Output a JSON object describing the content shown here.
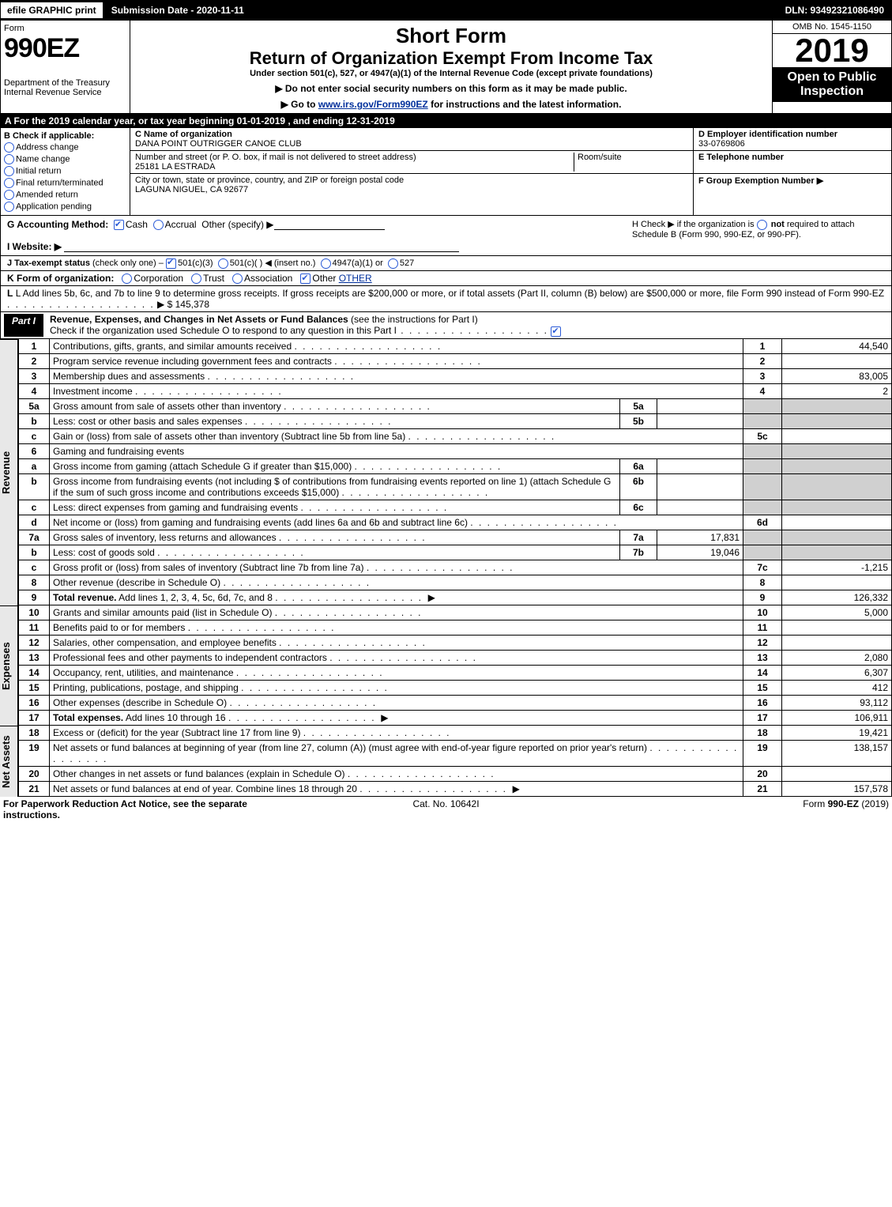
{
  "topbar": {
    "efile": "efile GRAPHIC print",
    "subdate": "Submission Date - 2020-11-11",
    "dln": "DLN: 93492321086490"
  },
  "header": {
    "form": "Form",
    "ez": "990EZ",
    "dept": "Department of the Treasury",
    "irs": "Internal Revenue Service",
    "short": "Short Form",
    "ret": "Return of Organization Exempt From Income Tax",
    "under": "Under section 501(c), 527, or 4947(a)(1) of the Internal Revenue Code (except private foundations)",
    "ptr1": "▶ Do not enter social security numbers on this form as it may be made public.",
    "ptr2_a": "▶ Go to ",
    "ptr2_link": "www.irs.gov/Form990EZ",
    "ptr2_b": " for instructions and the latest information.",
    "omb": "OMB No. 1545-1150",
    "year": "2019",
    "oti": "Open to Public Inspection"
  },
  "period": "A  For the 2019 calendar year, or tax year beginning 01-01-2019 , and ending 12-31-2019",
  "B": {
    "hdr": "B  Check if applicable:",
    "items": [
      "Address change",
      "Name change",
      "Initial return",
      "Final return/terminated",
      "Amended return",
      "Application pending"
    ]
  },
  "C": {
    "nameLbl": "C Name of organization",
    "name": "DANA POINT OUTRIGGER CANOE CLUB",
    "addrLbl": "Number and street (or P. O. box, if mail is not delivered to street address)",
    "room": "Room/suite",
    "addr": "25181 LA ESTRADA",
    "cityLbl": "City or town, state or province, country, and ZIP or foreign postal code",
    "city": "LAGUNA NIGUEL, CA  92677"
  },
  "D": {
    "lbl": "D Employer identification number",
    "val": "33-0769806"
  },
  "E": {
    "lbl": "E Telephone number"
  },
  "F": {
    "lbl": "F Group Exemption Number  ▶"
  },
  "G": {
    "lbl": "G Accounting Method:",
    "cash": "Cash",
    "accr": "Accrual",
    "other": "Other (specify) ▶"
  },
  "H": {
    "txt": "H   Check ▶         if the organization is ",
    "not": "not",
    "rest": "required to attach Schedule B (Form 990, 990-EZ, or 990-PF)."
  },
  "I": {
    "lbl": "I Website: ▶"
  },
  "J": {
    "lbl": "J Tax-exempt status",
    "rest": " (check only one) – ",
    "o1": "501(c)(3)",
    "o2": "501(c)(  ) ◀ (insert no.)",
    "o3": "4947(a)(1) or",
    "o4": "527"
  },
  "K": {
    "lbl": "K Form of organization:",
    "o1": "Corporation",
    "o2": "Trust",
    "o3": "Association",
    "o4": "Other",
    "other": "OTHER"
  },
  "L": {
    "txt": "L Add lines 5b, 6c, and 7b to line 9 to determine gross receipts. If gross receipts are $200,000 or more, or if total assets (Part II, column (B) below) are $500,000 or more, file Form 990 instead of Form 990-EZ",
    "amt": "▶ $ 145,378"
  },
  "part1": {
    "label": "Part I",
    "title": "Revenue, Expenses, and Changes in Net Assets or Fund Balances",
    "note": "(see the instructions for Part I)",
    "check": "Check if the organization used Schedule O to respond to any question in this Part I"
  },
  "sections": {
    "rev": "Revenue",
    "exp": "Expenses",
    "na": "Net Assets"
  },
  "rows": [
    {
      "n": "1",
      "d": "Contributions, gifts, grants, and similar amounts received",
      "rc": "1",
      "v": "44,540"
    },
    {
      "n": "2",
      "d": "Program service revenue including government fees and contracts",
      "rc": "2",
      "v": ""
    },
    {
      "n": "3",
      "d": "Membership dues and assessments",
      "rc": "3",
      "v": "83,005"
    },
    {
      "n": "4",
      "d": "Investment income",
      "rc": "4",
      "v": "2"
    },
    {
      "n": "5a",
      "d": "Gross amount from sale of assets other than inventory",
      "mc": "5a",
      "mv": "",
      "shade": true
    },
    {
      "n": "b",
      "d": "Less: cost or other basis and sales expenses",
      "mc": "5b",
      "mv": "",
      "shade": true
    },
    {
      "n": "c",
      "d": "Gain or (loss) from sale of assets other than inventory (Subtract line 5b from line 5a)",
      "rc": "5c",
      "v": ""
    },
    {
      "n": "6",
      "d": "Gaming and fundraising events",
      "shade": true,
      "noval": true
    },
    {
      "n": "a",
      "d": "Gross income from gaming (attach Schedule G if greater than $15,000)",
      "mc": "6a",
      "mv": "",
      "shade": true
    },
    {
      "n": "b",
      "d": "Gross income from fundraising events (not including $                          of contributions from fundraising events reported on line 1) (attach Schedule G if the sum of such gross income and contributions exceeds $15,000)",
      "mc": "6b",
      "mv": "",
      "shade": true
    },
    {
      "n": "c",
      "d": "Less: direct expenses from gaming and fundraising events",
      "mc": "6c",
      "mv": "",
      "shade": true
    },
    {
      "n": "d",
      "d": "Net income or (loss) from gaming and fundraising events (add lines 6a and 6b and subtract line 6c)",
      "rc": "6d",
      "v": ""
    },
    {
      "n": "7a",
      "d": "Gross sales of inventory, less returns and allowances",
      "mc": "7a",
      "mv": "17,831",
      "shade": true
    },
    {
      "n": "b",
      "d": "Less: cost of goods sold",
      "mc": "7b",
      "mv": "19,046",
      "shade": true
    },
    {
      "n": "c",
      "d": "Gross profit or (loss) from sales of inventory (Subtract line 7b from line 7a)",
      "rc": "7c",
      "v": "-1,215"
    },
    {
      "n": "8",
      "d": "Other revenue (describe in Schedule O)",
      "rc": "8",
      "v": ""
    },
    {
      "n": "9",
      "d": "Total revenue. Add lines 1, 2, 3, 4, 5c, 6d, 7c, and 8",
      "rc": "9",
      "v": "126,332",
      "bold": true,
      "arrow": true
    }
  ],
  "exp": [
    {
      "n": "10",
      "d": "Grants and similar amounts paid (list in Schedule O)",
      "rc": "10",
      "v": "5,000"
    },
    {
      "n": "11",
      "d": "Benefits paid to or for members",
      "rc": "11",
      "v": ""
    },
    {
      "n": "12",
      "d": "Salaries, other compensation, and employee benefits",
      "rc": "12",
      "v": ""
    },
    {
      "n": "13",
      "d": "Professional fees and other payments to independent contractors",
      "rc": "13",
      "v": "2,080"
    },
    {
      "n": "14",
      "d": "Occupancy, rent, utilities, and maintenance",
      "rc": "14",
      "v": "6,307"
    },
    {
      "n": "15",
      "d": "Printing, publications, postage, and shipping",
      "rc": "15",
      "v": "412"
    },
    {
      "n": "16",
      "d": "Other expenses (describe in Schedule O)",
      "rc": "16",
      "v": "93,112"
    },
    {
      "n": "17",
      "d": "Total expenses. Add lines 10 through 16",
      "rc": "17",
      "v": "106,911",
      "bold": true,
      "arrow": true
    }
  ],
  "na": [
    {
      "n": "18",
      "d": "Excess or (deficit) for the year (Subtract line 17 from line 9)",
      "rc": "18",
      "v": "19,421"
    },
    {
      "n": "19",
      "d": "Net assets or fund balances at beginning of year (from line 27, column (A)) (must agree with end-of-year figure reported on prior year's return)",
      "rc": "19",
      "v": "138,157"
    },
    {
      "n": "20",
      "d": "Other changes in net assets or fund balances (explain in Schedule O)",
      "rc": "20",
      "v": ""
    },
    {
      "n": "21",
      "d": "Net assets or fund balances at end of year. Combine lines 18 through 20",
      "rc": "21",
      "v": "157,578",
      "arrow": true
    }
  ],
  "foot": {
    "l": "For Paperwork Reduction Act Notice, see the separate instructions.",
    "m": "Cat. No. 10642I",
    "r": "Form 990-EZ (2019)"
  }
}
